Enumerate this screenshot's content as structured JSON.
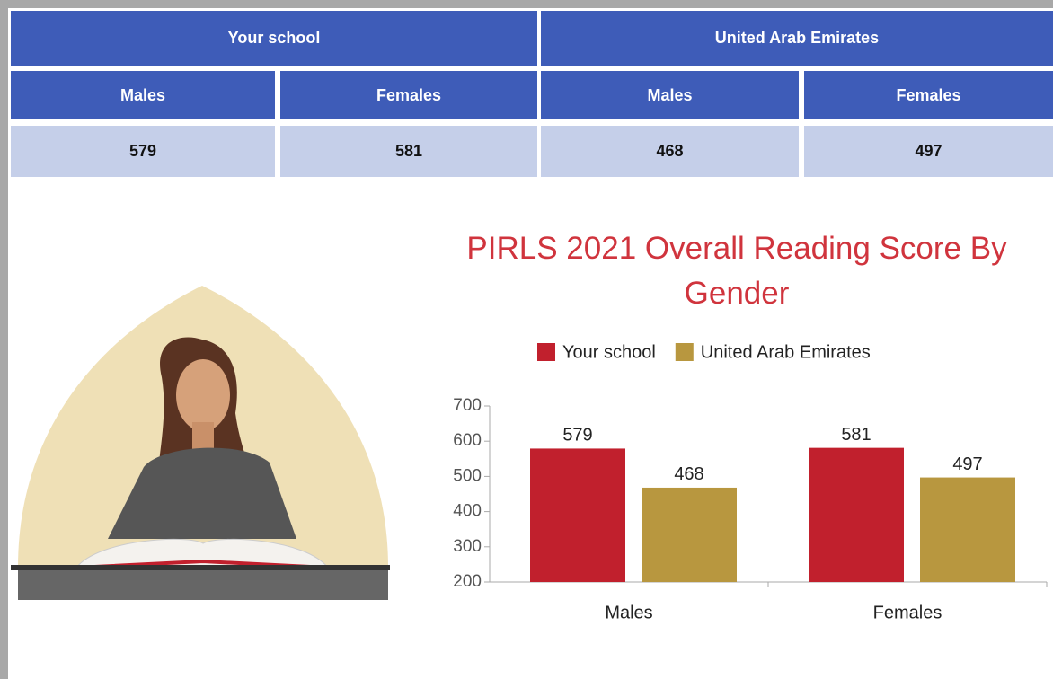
{
  "table": {
    "groups": [
      "Your school",
      "United Arab Emirates"
    ],
    "columns": [
      "Males",
      "Females",
      "Males",
      "Females"
    ],
    "rows": [
      [
        579,
        581,
        468,
        497
      ]
    ]
  },
  "chart_data": {
    "type": "bar",
    "title": "PIRLS 2021 Overall Reading Score By Gender",
    "categories": [
      "Males",
      "Females"
    ],
    "series": [
      {
        "name": "Your school",
        "color": "#c1202d",
        "values": [
          579,
          581
        ]
      },
      {
        "name": "United Arab Emirates",
        "color": "#b8973f",
        "values": [
          468,
          497
        ]
      }
    ],
    "ylim": [
      200,
      700
    ],
    "yticks": [
      200,
      300,
      400,
      500,
      600,
      700
    ],
    "legend": "top"
  }
}
